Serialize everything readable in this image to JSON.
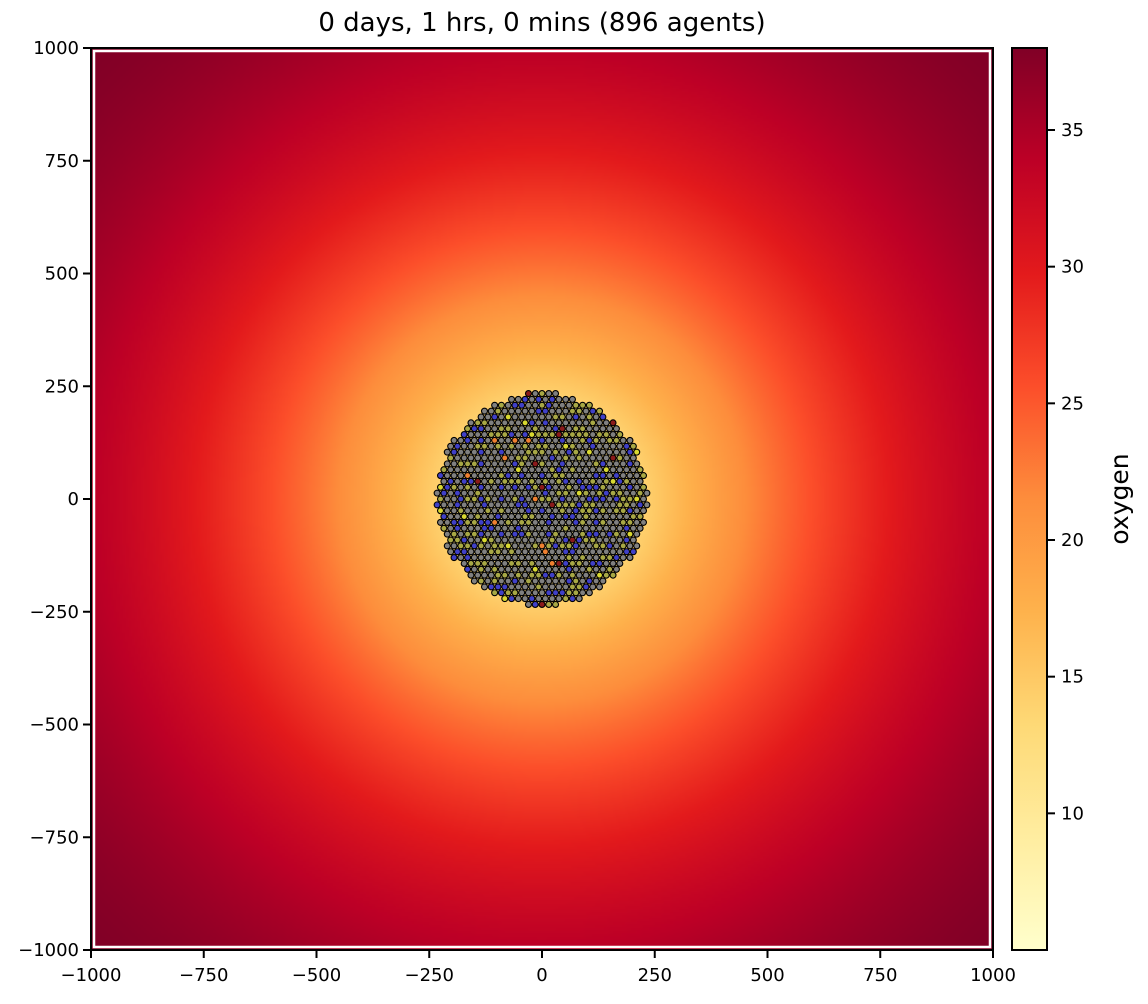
{
  "chart_data": {
    "type": "heatmap",
    "title": "0 days, 1 hrs, 0 mins (896 agents)",
    "xlabel": "",
    "ylabel": "",
    "xlim": [
      -1000,
      1000
    ],
    "ylim": [
      -1000,
      1000
    ],
    "x_ticks": [
      -1000,
      -750,
      -500,
      -250,
      0,
      250,
      500,
      750,
      1000
    ],
    "y_ticks": [
      -1000,
      -750,
      -500,
      -250,
      0,
      250,
      500,
      750,
      1000
    ],
    "x_tick_labels": [
      "−1000",
      "−750",
      "−500",
      "−250",
      "0",
      "250",
      "500",
      "750",
      "1000"
    ],
    "y_tick_labels": [
      "−1000",
      "−750",
      "−500",
      "−250",
      "0",
      "250",
      "500",
      "750",
      "1000"
    ],
    "grid": false,
    "field": {
      "name": "oxygen",
      "min": 5,
      "max": 38,
      "center_value": 5,
      "edge_value": 34,
      "corner_value": 38,
      "colormap": "YlOrRd",
      "colormap_stops": [
        "#ffffcc",
        "#ffeda0",
        "#fed976",
        "#feb24c",
        "#fd8d3c",
        "#fc4e2a",
        "#e31a1c",
        "#bd0026",
        "#800026"
      ]
    },
    "colorbar": {
      "label": "oxygen",
      "ticks": [
        10,
        15,
        20,
        25,
        30,
        35
      ],
      "range": [
        5,
        38
      ]
    },
    "agents": {
      "count": 896,
      "cluster_center": [
        0,
        0
      ],
      "cluster_radius": 250,
      "cell_spacing": 15,
      "marker_edge_color": "#000000",
      "phenotype_colors": [
        "#808080",
        "#a8a845",
        "#4040c8",
        "#d8d830",
        "#f08030",
        "#8b1a1a"
      ],
      "phenotype_weights": [
        0.55,
        0.22,
        0.17,
        0.04,
        0.01,
        0.01
      ]
    }
  }
}
